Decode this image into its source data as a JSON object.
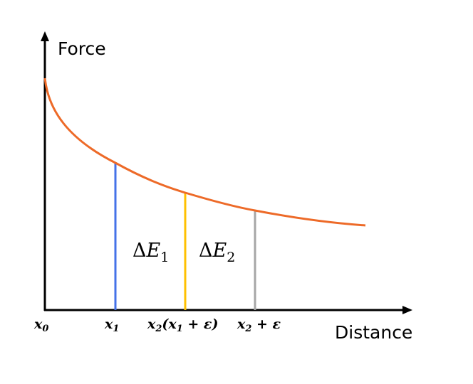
{
  "axes": {
    "y_title": "Force",
    "x_title": "Distance"
  },
  "ticks": {
    "x0": {
      "base": "x",
      "sub": "0",
      "rest": ""
    },
    "x1": {
      "base": "x",
      "sub": "1",
      "rest": ""
    },
    "x2": {
      "base": "x",
      "sub": "2",
      "paren_open": "(",
      "inner_base": "x",
      "inner_sub": "1",
      "inner_rest": " + ε)"
    },
    "x2e": {
      "base": "x",
      "sub": "2",
      "rest": " + ε"
    }
  },
  "regions": {
    "e1": {
      "delta": "Δ",
      "letter": "E",
      "sub": "1"
    },
    "e2": {
      "delta": "Δ",
      "letter": "E",
      "sub": "2"
    }
  },
  "colors": {
    "curve": "#ED6A28",
    "line_x1": "#4472E8",
    "line_x2": "#FFC000",
    "line_x2e": "#A6A6A6",
    "axis": "#000000"
  }
}
